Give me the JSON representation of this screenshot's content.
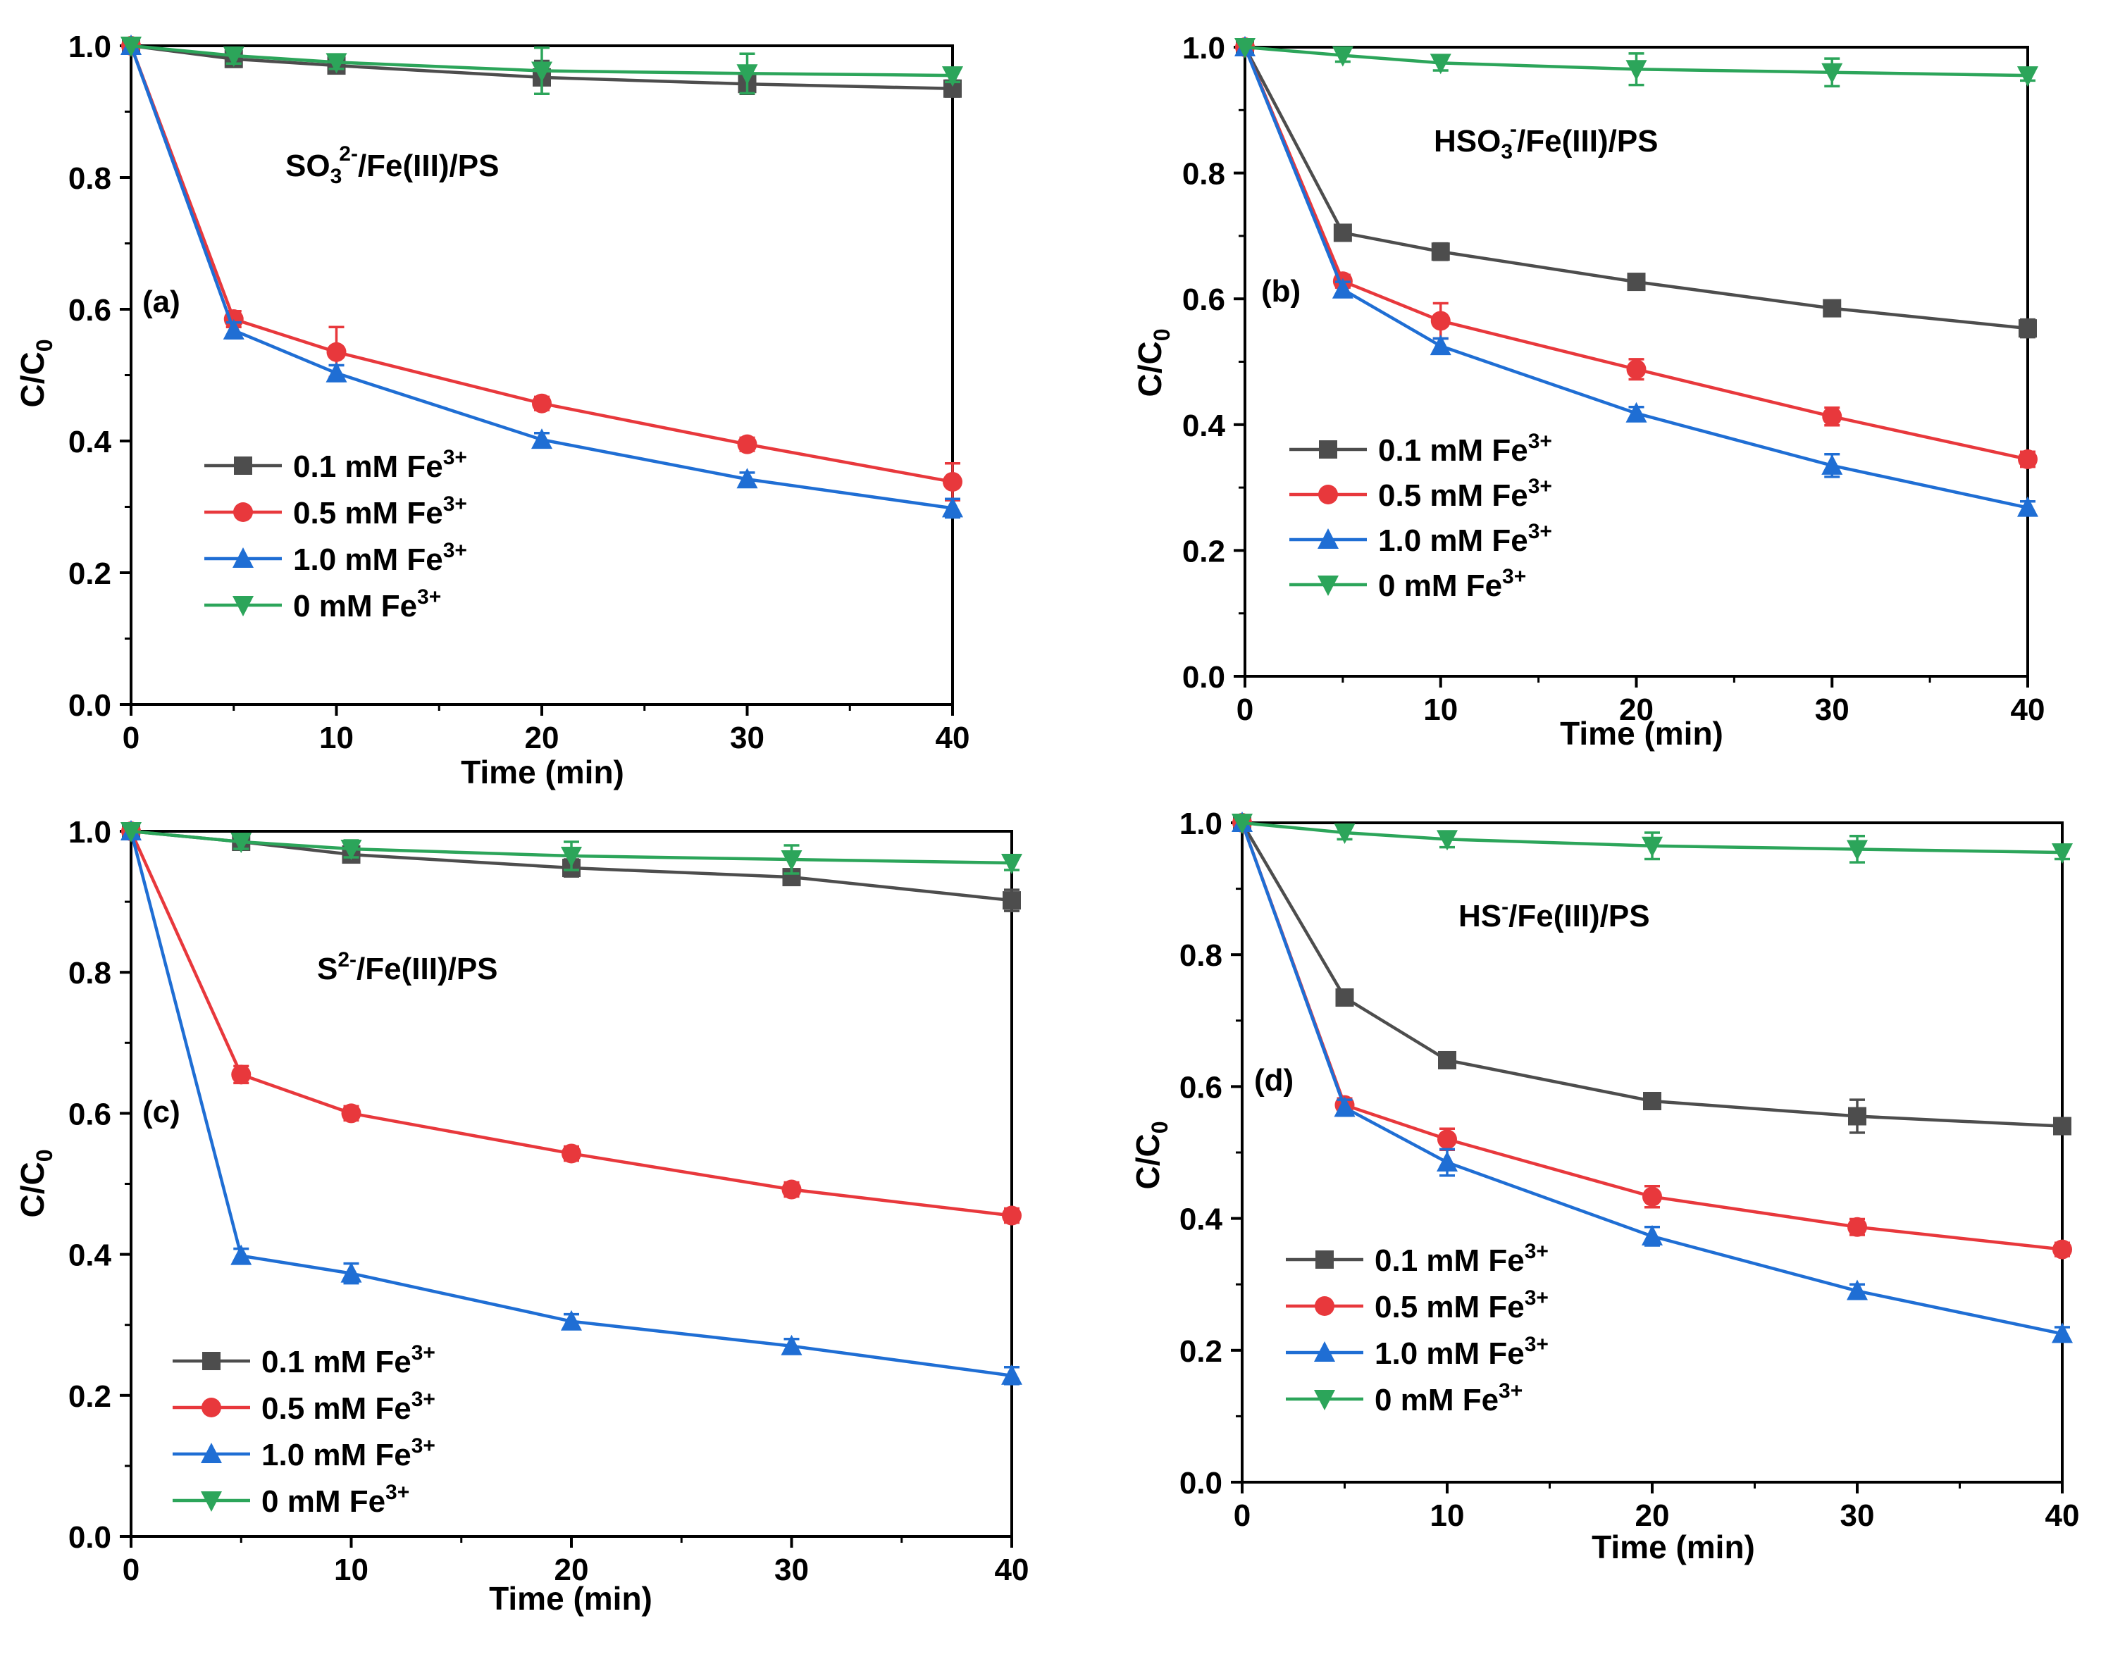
{
  "chart_data": [
    {
      "panel": "(a)",
      "type": "line",
      "title": "",
      "annotation": {
        "main": "SO",
        "sub": "3",
        "sup": "2-",
        "rest": "/Fe(III)/PS"
      },
      "xlabel": "Time (min)",
      "ylabel": {
        "main": "C/C",
        "sub": "0"
      },
      "xlim": [
        0,
        40
      ],
      "ylim": [
        0,
        1.0
      ],
      "xticks": [
        0,
        10,
        20,
        30,
        40
      ],
      "yticks": [
        "0.0",
        "0.2",
        "0.4",
        "0.6",
        "0.8",
        "1.0"
      ],
      "x": [
        0,
        5,
        10,
        20,
        30,
        40
      ],
      "legend_position": "lower-left",
      "series": [
        {
          "name": "0.1 mM Fe",
          "sup": "3+",
          "color": "#4d4d4d",
          "marker": "square",
          "values": [
            1.0,
            0.98,
            0.97,
            0.952,
            0.942,
            0.935
          ],
          "errors": [
            0,
            0.012,
            0.01,
            0.025,
            0.015,
            0.012
          ]
        },
        {
          "name": "0.5 mM Fe",
          "sup": "3+",
          "color": "#e8383c",
          "marker": "circle",
          "values": [
            1.0,
            0.585,
            0.535,
            0.457,
            0.395,
            0.338
          ],
          "errors": [
            0,
            0.012,
            0.038,
            0.01,
            0.01,
            0.028
          ]
        },
        {
          "name": "1.0 mM Fe",
          "sup": "3+",
          "color": "#1f6ed4",
          "marker": "triangle-up",
          "values": [
            1.0,
            0.568,
            0.503,
            0.402,
            0.342,
            0.298
          ],
          "errors": [
            0,
            0.012,
            0.012,
            0.01,
            0.01,
            0.014
          ]
        },
        {
          "name": "0 mM Fe",
          "sup": "3+",
          "color": "#2ca55a",
          "marker": "triangle-down",
          "values": [
            1.0,
            0.985,
            0.975,
            0.962,
            0.958,
            0.955
          ],
          "errors": [
            0,
            0.012,
            0.01,
            0.035,
            0.03,
            0.01
          ]
        }
      ]
    },
    {
      "panel": "(b)",
      "type": "line",
      "title": "",
      "annotation": {
        "main": "HSO",
        "sub": "3",
        "sup": "-",
        "rest": "/Fe(III)/PS"
      },
      "xlabel": "Time (min)",
      "ylabel": {
        "main": "C/C",
        "sub": "0"
      },
      "xlim": [
        0,
        40
      ],
      "ylim": [
        0,
        1.0
      ],
      "xticks": [
        0,
        10,
        20,
        30,
        40
      ],
      "yticks": [
        "0.0",
        "0.2",
        "0.4",
        "0.6",
        "0.8",
        "1.0"
      ],
      "x": [
        0,
        5,
        10,
        20,
        30,
        40
      ],
      "legend_position": "lower-left",
      "series": [
        {
          "name": "0.1 mM Fe",
          "sup": "3+",
          "color": "#4d4d4d",
          "marker": "square",
          "values": [
            1.0,
            0.705,
            0.675,
            0.627,
            0.585,
            0.553
          ],
          "errors": [
            0,
            0.01,
            0.013,
            0.01,
            0.008,
            0.014
          ]
        },
        {
          "name": "0.5 mM Fe",
          "sup": "3+",
          "color": "#e8383c",
          "marker": "circle",
          "values": [
            1.0,
            0.628,
            0.565,
            0.488,
            0.413,
            0.345
          ],
          "errors": [
            0,
            0.01,
            0.028,
            0.016,
            0.014,
            0.012
          ]
        },
        {
          "name": "1.0 mM Fe",
          "sup": "3+",
          "color": "#1f6ed4",
          "marker": "triangle-up",
          "values": [
            1.0,
            0.615,
            0.525,
            0.418,
            0.335,
            0.268
          ],
          "errors": [
            0,
            0.012,
            0.012,
            0.01,
            0.018,
            0.01
          ]
        },
        {
          "name": "0 mM Fe",
          "sup": "3+",
          "color": "#2ca55a",
          "marker": "triangle-down",
          "values": [
            1.0,
            0.987,
            0.975,
            0.965,
            0.96,
            0.955
          ],
          "errors": [
            0,
            0.01,
            0.012,
            0.025,
            0.022,
            0.008
          ]
        }
      ]
    },
    {
      "panel": "(c)",
      "type": "line",
      "title": "",
      "annotation": {
        "main": "S",
        "sub": "",
        "sup": "2-",
        "rest": "/Fe(III)/PS"
      },
      "xlabel": "Time (min)",
      "ylabel": {
        "main": "C/C",
        "sub": "0"
      },
      "xlim": [
        0,
        40
      ],
      "ylim": [
        0,
        1.0
      ],
      "xticks": [
        0,
        10,
        20,
        30,
        40
      ],
      "yticks": [
        "0.0",
        "0.2",
        "0.4",
        "0.6",
        "0.8",
        "1.0"
      ],
      "x": [
        0,
        5,
        10,
        20,
        30,
        40
      ],
      "legend_position": "lower-left",
      "series": [
        {
          "name": "0.1 mM Fe",
          "sup": "3+",
          "color": "#4d4d4d",
          "marker": "square",
          "values": [
            1.0,
            0.985,
            0.967,
            0.948,
            0.935,
            0.902
          ],
          "errors": [
            0,
            0.01,
            0.01,
            0.012,
            0.01,
            0.015
          ]
        },
        {
          "name": "0.5 mM Fe",
          "sup": "3+",
          "color": "#e8383c",
          "marker": "circle",
          "values": [
            1.0,
            0.655,
            0.6,
            0.543,
            0.492,
            0.455
          ],
          "errors": [
            0,
            0.012,
            0.01,
            0.01,
            0.01,
            0.01
          ]
        },
        {
          "name": "1.0 mM Fe",
          "sup": "3+",
          "color": "#1f6ed4",
          "marker": "triangle-up",
          "values": [
            1.0,
            0.398,
            0.373,
            0.305,
            0.27,
            0.228
          ],
          "errors": [
            0,
            0.01,
            0.014,
            0.01,
            0.01,
            0.012
          ]
        },
        {
          "name": "0 mM Fe",
          "sup": "3+",
          "color": "#2ca55a",
          "marker": "triangle-down",
          "values": [
            1.0,
            0.985,
            0.975,
            0.965,
            0.96,
            0.955
          ],
          "errors": [
            0,
            0.01,
            0.012,
            0.02,
            0.02,
            0.01
          ]
        }
      ]
    },
    {
      "panel": "(d)",
      "type": "line",
      "title": "",
      "annotation": {
        "main": "HS",
        "sub": "",
        "sup": "-",
        "rest": "/Fe(III)/PS"
      },
      "xlabel": "Time (min)",
      "ylabel": {
        "main": "C/C",
        "sub": "0"
      },
      "xlim": [
        0,
        40
      ],
      "ylim": [
        0,
        1.0
      ],
      "xticks": [
        0,
        10,
        20,
        30,
        40
      ],
      "yticks": [
        "0.0",
        "0.2",
        "0.4",
        "0.6",
        "0.8",
        "1.0"
      ],
      "x": [
        0,
        5,
        10,
        20,
        30,
        40
      ],
      "legend_position": "lower-left",
      "series": [
        {
          "name": "0.1 mM Fe",
          "sup": "3+",
          "color": "#4d4d4d",
          "marker": "square",
          "values": [
            1.0,
            0.735,
            0.64,
            0.578,
            0.555,
            0.54
          ],
          "errors": [
            0,
            0.01,
            0.012,
            0.01,
            0.025,
            0.012
          ]
        },
        {
          "name": "0.5 mM Fe",
          "sup": "3+",
          "color": "#e8383c",
          "marker": "circle",
          "values": [
            1.0,
            0.572,
            0.52,
            0.433,
            0.387,
            0.353
          ],
          "errors": [
            0,
            0.01,
            0.016,
            0.016,
            0.012,
            0.01
          ]
        },
        {
          "name": "1.0 mM Fe",
          "sup": "3+",
          "color": "#1f6ed4",
          "marker": "triangle-up",
          "values": [
            1.0,
            0.568,
            0.485,
            0.373,
            0.29,
            0.225
          ],
          "errors": [
            0,
            0.012,
            0.02,
            0.014,
            0.01,
            0.01
          ]
        },
        {
          "name": "0 mM Fe",
          "sup": "3+",
          "color": "#2ca55a",
          "marker": "triangle-down",
          "values": [
            1.0,
            0.985,
            0.975,
            0.965,
            0.96,
            0.955
          ],
          "errors": [
            0,
            0.01,
            0.012,
            0.02,
            0.02,
            0.01
          ]
        }
      ]
    }
  ]
}
